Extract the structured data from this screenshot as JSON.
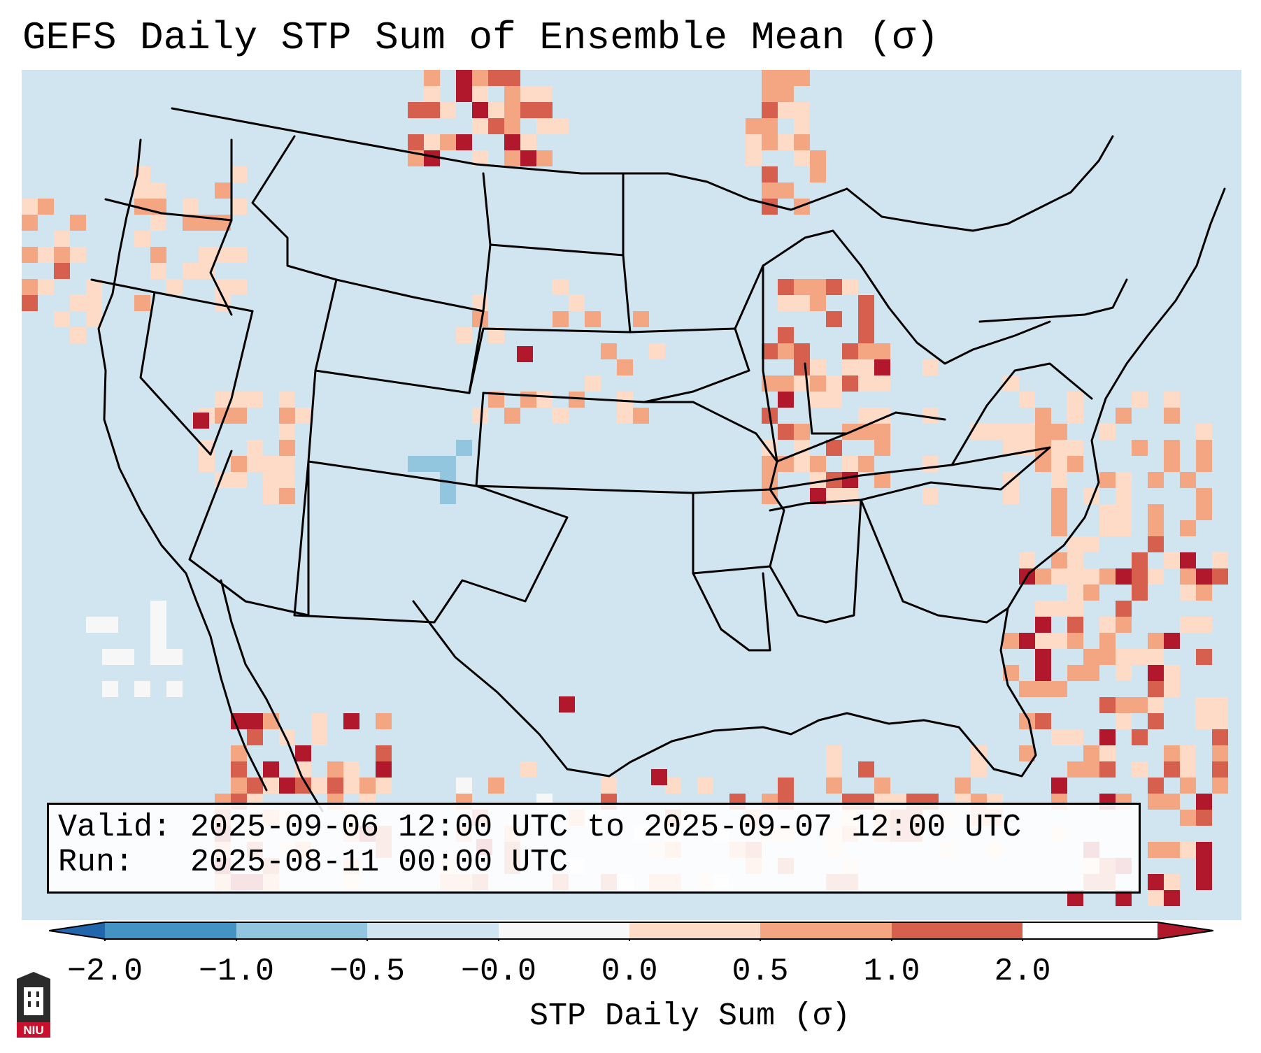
{
  "figure": {
    "title": "GEFS Daily STP Sum of Ensemble Mean (σ)"
  },
  "info": {
    "valid_line": "Valid: 2025-09-06 12:00 UTC to 2025-09-07 12:00 UTC",
    "run_line": "Run:   2025-08-11 00:00 UTC"
  },
  "colorbar": {
    "label": "STP Daily Sum (σ)",
    "tick_labels": [
      "−2.0",
      "−1.0",
      "−0.5",
      "−0.0",
      "0.0",
      "0.5",
      "1.0",
      "2.0"
    ],
    "bins": [
      {
        "range": "< -2.0",
        "color": "#2166ac"
      },
      {
        "range": "-2.0 to -1.0",
        "color": "#4393c3"
      },
      {
        "range": "-1.0 to -0.5",
        "color": "#92c5de"
      },
      {
        "range": "-0.5 to -0.0",
        "color": "#d1e5f0"
      },
      {
        "range": "-0.0 to 0.0",
        "color": "#f7f7f7"
      },
      {
        "range": "0.0 to 0.5",
        "color": "#fddbc7"
      },
      {
        "range": "0.5 to 1.0",
        "color": "#f4a582"
      },
      {
        "range": "1.0 to 2.0",
        "color": "#d6604d"
      },
      {
        "range": "> 2.0",
        "color": "#b2182b"
      }
    ]
  },
  "map": {
    "background_color": "#d1e5f0",
    "border_color": "#000000",
    "notable_anomalies": [
      {
        "region": "Central Illinois / southern Illinois",
        "category": "1.0 to 2.0+"
      },
      {
        "region": "North Dakota / Montana border (Canada)",
        "category": "1.0 to 2.0+"
      },
      {
        "region": "Western Atlantic off Southeast US",
        "category": "1.0 to 2.0+"
      },
      {
        "region": "Northwestern Mexico",
        "category": "1.0 to 2.0+"
      },
      {
        "region": "Eastern Colorado",
        "category": "-1.0 to -0.5"
      }
    ]
  },
  "logo": {
    "text": "NIU"
  }
}
